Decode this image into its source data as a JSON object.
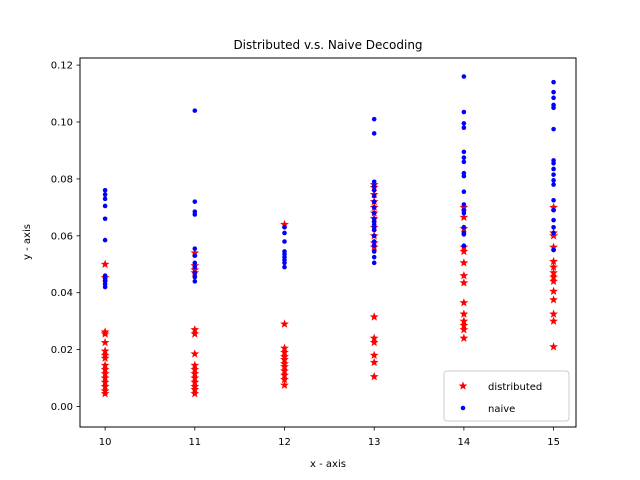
{
  "chart_data": {
    "type": "scatter",
    "title": "Distributed v.s. Naive Decoding",
    "xlabel": "x - axis",
    "ylabel": "y - axis",
    "xlim": [
      9.72,
      15.25
    ],
    "ylim": [
      -0.0072,
      0.1225
    ],
    "x_ticks": [
      10,
      11,
      12,
      13,
      14,
      15
    ],
    "y_ticks": [
      0.0,
      0.02,
      0.04,
      0.06,
      0.08,
      0.1,
      0.12
    ],
    "y_tick_labels": [
      "0.00",
      "0.02",
      "0.04",
      "0.06",
      "0.08",
      "0.10",
      "0.12"
    ],
    "grid": false,
    "legend_position": "lower right",
    "series": [
      {
        "name": "distributed",
        "marker": "star",
        "color": "#ff0000",
        "points": [
          [
            10,
            0.05
          ],
          [
            10,
            0.0453
          ],
          [
            10,
            0.0262
          ],
          [
            10,
            0.0255
          ],
          [
            10,
            0.0225
          ],
          [
            10,
            0.0195
          ],
          [
            10,
            0.018
          ],
          [
            10,
            0.017
          ],
          [
            10,
            0.0145
          ],
          [
            10,
            0.013
          ],
          [
            10,
            0.0115
          ],
          [
            10,
            0.01
          ],
          [
            10,
            0.0085
          ],
          [
            10,
            0.007
          ],
          [
            10,
            0.0055
          ],
          [
            10,
            0.0045
          ],
          [
            11,
            0.054
          ],
          [
            11,
            0.0495
          ],
          [
            11,
            0.048
          ],
          [
            11,
            0.047
          ],
          [
            11,
            0.027
          ],
          [
            11,
            0.0255
          ],
          [
            11,
            0.0185
          ],
          [
            11,
            0.0145
          ],
          [
            11,
            0.013
          ],
          [
            11,
            0.0115
          ],
          [
            11,
            0.01
          ],
          [
            11,
            0.0085
          ],
          [
            11,
            0.007
          ],
          [
            11,
            0.006
          ],
          [
            11,
            0.0045
          ],
          [
            12,
            0.064
          ],
          [
            12,
            0.029
          ],
          [
            12,
            0.0205
          ],
          [
            12,
            0.019
          ],
          [
            12,
            0.0175
          ],
          [
            12,
            0.0165
          ],
          [
            12,
            0.015
          ],
          [
            12,
            0.014
          ],
          [
            12,
            0.0125
          ],
          [
            12,
            0.011
          ],
          [
            12,
            0.0095
          ],
          [
            12,
            0.0075
          ],
          [
            13,
            0.078
          ],
          [
            13,
            0.077
          ],
          [
            13,
            0.0745
          ],
          [
            13,
            0.072
          ],
          [
            13,
            0.07
          ],
          [
            13,
            0.068
          ],
          [
            13,
            0.066
          ],
          [
            13,
            0.063
          ],
          [
            13,
            0.06
          ],
          [
            13,
            0.0575
          ],
          [
            13,
            0.056
          ],
          [
            13,
            0.0315
          ],
          [
            13,
            0.024
          ],
          [
            13,
            0.0225
          ],
          [
            13,
            0.018
          ],
          [
            13,
            0.0155
          ],
          [
            13,
            0.0105
          ],
          [
            14,
            0.07
          ],
          [
            14,
            0.0665
          ],
          [
            14,
            0.0625
          ],
          [
            14,
            0.056
          ],
          [
            14,
            0.0545
          ],
          [
            14,
            0.0505
          ],
          [
            14,
            0.046
          ],
          [
            14,
            0.0435
          ],
          [
            14,
            0.0365
          ],
          [
            14,
            0.0325
          ],
          [
            14,
            0.03
          ],
          [
            14,
            0.0285
          ],
          [
            14,
            0.027
          ],
          [
            14,
            0.024
          ],
          [
            15,
            0.07
          ],
          [
            15,
            0.061
          ],
          [
            15,
            0.06
          ],
          [
            15,
            0.056
          ],
          [
            15,
            0.051
          ],
          [
            15,
            0.049
          ],
          [
            15,
            0.047
          ],
          [
            15,
            0.0455
          ],
          [
            15,
            0.044
          ],
          [
            15,
            0.0405
          ],
          [
            15,
            0.0375
          ],
          [
            15,
            0.0325
          ],
          [
            15,
            0.03
          ],
          [
            15,
            0.021
          ]
        ]
      },
      {
        "name": "naive",
        "marker": "dot",
        "color": "#0000ff",
        "points": [
          [
            10,
            0.076
          ],
          [
            10,
            0.0745
          ],
          [
            10,
            0.073
          ],
          [
            10,
            0.0705
          ],
          [
            10,
            0.066
          ],
          [
            10,
            0.0585
          ],
          [
            10,
            0.046
          ],
          [
            10,
            0.045
          ],
          [
            10,
            0.044
          ],
          [
            10,
            0.043
          ],
          [
            10,
            0.042
          ],
          [
            11,
            0.104
          ],
          [
            11,
            0.072
          ],
          [
            11,
            0.0685
          ],
          [
            11,
            0.0675
          ],
          [
            11,
            0.0555
          ],
          [
            11,
            0.053
          ],
          [
            11,
            0.0505
          ],
          [
            11,
            0.049
          ],
          [
            11,
            0.047
          ],
          [
            11,
            0.0455
          ],
          [
            11,
            0.044
          ],
          [
            12,
            0.063
          ],
          [
            12,
            0.061
          ],
          [
            12,
            0.058
          ],
          [
            12,
            0.0545
          ],
          [
            12,
            0.0535
          ],
          [
            12,
            0.0525
          ],
          [
            12,
            0.0515
          ],
          [
            12,
            0.0505
          ],
          [
            12,
            0.049
          ],
          [
            13,
            0.101
          ],
          [
            13,
            0.096
          ],
          [
            13,
            0.079
          ],
          [
            13,
            0.0775
          ],
          [
            13,
            0.076
          ],
          [
            13,
            0.074
          ],
          [
            13,
            0.072
          ],
          [
            13,
            0.07
          ],
          [
            13,
            0.068
          ],
          [
            13,
            0.066
          ],
          [
            13,
            0.065
          ],
          [
            13,
            0.064
          ],
          [
            13,
            0.063
          ],
          [
            13,
            0.062
          ],
          [
            13,
            0.06
          ],
          [
            13,
            0.058
          ],
          [
            13,
            0.0565
          ],
          [
            13,
            0.0545
          ],
          [
            13,
            0.0525
          ],
          [
            13,
            0.0505
          ],
          [
            14,
            0.116
          ],
          [
            14,
            0.1035
          ],
          [
            14,
            0.0995
          ],
          [
            14,
            0.098
          ],
          [
            14,
            0.0895
          ],
          [
            14,
            0.0875
          ],
          [
            14,
            0.086
          ],
          [
            14,
            0.082
          ],
          [
            14,
            0.081
          ],
          [
            14,
            0.0755
          ],
          [
            14,
            0.071
          ],
          [
            14,
            0.069
          ],
          [
            14,
            0.068
          ],
          [
            14,
            0.063
          ],
          [
            14,
            0.061
          ],
          [
            14,
            0.0605
          ],
          [
            14,
            0.0565
          ],
          [
            15,
            0.114
          ],
          [
            15,
            0.1105
          ],
          [
            15,
            0.1085
          ],
          [
            15,
            0.106
          ],
          [
            15,
            0.105
          ],
          [
            15,
            0.0975
          ],
          [
            15,
            0.0865
          ],
          [
            15,
            0.0855
          ],
          [
            15,
            0.0835
          ],
          [
            15,
            0.0815
          ],
          [
            15,
            0.0795
          ],
          [
            15,
            0.078
          ],
          [
            15,
            0.0725
          ],
          [
            15,
            0.069
          ],
          [
            15,
            0.0655
          ],
          [
            15,
            0.063
          ],
          [
            15,
            0.061
          ],
          [
            15,
            0.055
          ]
        ]
      }
    ]
  }
}
